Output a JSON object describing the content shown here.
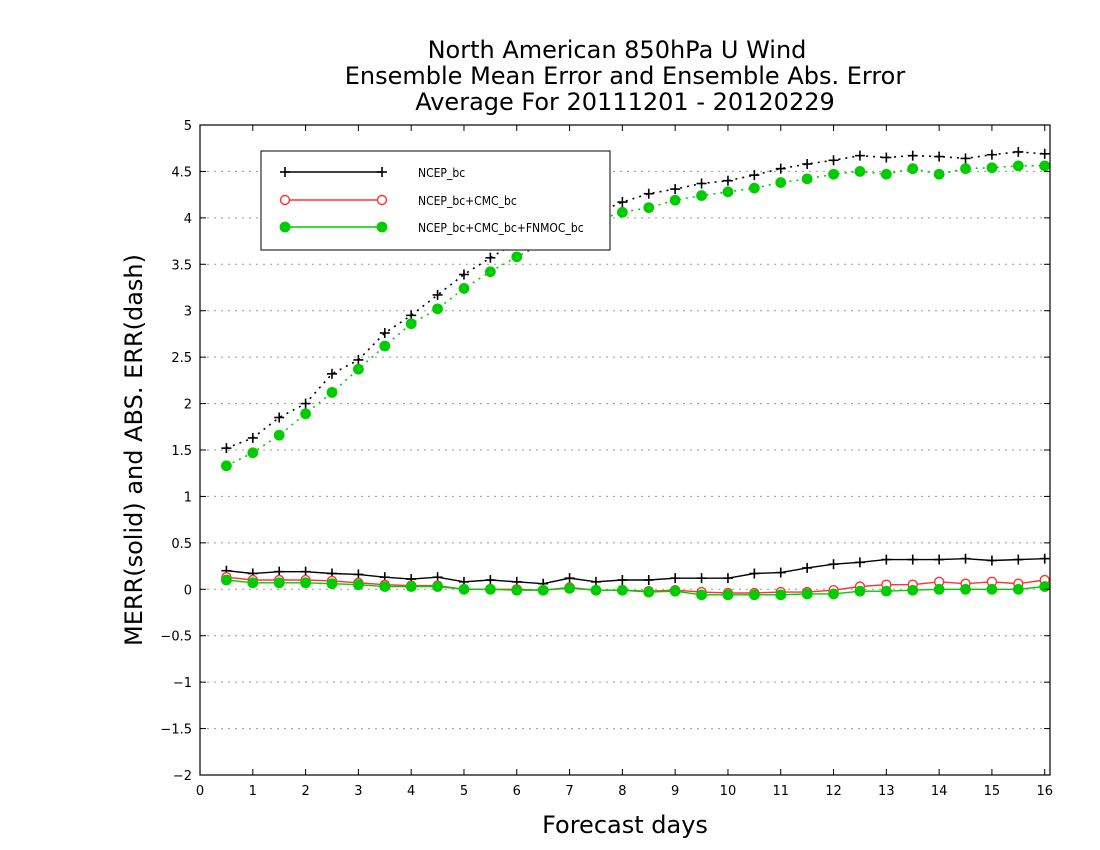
{
  "chart_data": {
    "type": "line",
    "title_lines": [
      "North American 850hPa U Wind",
      "Ensemble Mean Error and Ensemble Abs. Error",
      "Average For 20111201 - 20120229"
    ],
    "xlabel": "Forecast days",
    "ylabel": "MERR(solid) and ABS. ERR(dash)",
    "xlim": [
      0,
      16.1
    ],
    "ylim": [
      -2,
      5
    ],
    "x_ticks": [
      0,
      1,
      2,
      3,
      4,
      5,
      6,
      7,
      8,
      9,
      10,
      11,
      12,
      13,
      14,
      15,
      16
    ],
    "y_ticks": [
      5,
      4.5,
      4,
      3.5,
      3,
      2.5,
      2,
      1.5,
      1,
      0.5,
      0,
      -0.5,
      -1,
      -1.5,
      -2
    ],
    "y_tick_labels": [
      "5",
      "4.5",
      "4",
      "3.5",
      "3",
      "2.5",
      "2",
      "1.5",
      "1",
      "0.5",
      "0",
      "−0.5",
      "−1",
      "−1.5",
      "−2"
    ],
    "grid": "horizontal-dotted",
    "legend_position": "top-left",
    "x": [
      0.5,
      1,
      1.5,
      2,
      2.5,
      3,
      3.5,
      4,
      4.5,
      5,
      5.5,
      6,
      6.5,
      7,
      7.5,
      8,
      8.5,
      9,
      9.5,
      10,
      10.5,
      11,
      11.5,
      12,
      12.5,
      13,
      13.5,
      14,
      14.5,
      15,
      15.5,
      16
    ],
    "series": [
      {
        "name": "NCEP_bc",
        "color": "#000000",
        "marker": "plus",
        "merr": [
          0.2,
          0.17,
          0.19,
          0.19,
          0.17,
          0.16,
          0.13,
          0.11,
          0.13,
          0.08,
          0.1,
          0.08,
          0.06,
          0.12,
          0.08,
          0.1,
          0.1,
          0.12,
          0.12,
          0.12,
          0.17,
          0.18,
          0.23,
          0.27,
          0.29,
          0.32,
          0.32,
          0.32,
          0.33,
          0.31,
          0.32,
          0.33
        ],
        "abs_err": [
          1.52,
          1.63,
          1.85,
          2.0,
          2.32,
          2.47,
          2.76,
          2.95,
          3.17,
          3.39,
          3.57,
          3.74,
          3.86,
          3.97,
          4.05,
          4.17,
          4.26,
          4.31,
          4.37,
          4.4,
          4.46,
          4.53,
          4.58,
          4.62,
          4.67,
          4.65,
          4.67,
          4.66,
          4.64,
          4.68,
          4.71,
          4.69
        ]
      },
      {
        "name": "NCEP_bc+CMC_bc",
        "color": "#ff3333",
        "marker": "open-circle",
        "merr": [
          0.13,
          0.1,
          0.1,
          0.1,
          0.09,
          0.07,
          0.05,
          0.04,
          0.04,
          0.0,
          0.0,
          0.0,
          -0.01,
          0.02,
          -0.01,
          -0.01,
          -0.02,
          -0.01,
          -0.03,
          -0.04,
          -0.04,
          -0.03,
          -0.03,
          -0.01,
          0.03,
          0.05,
          0.05,
          0.08,
          0.06,
          0.08,
          0.06,
          0.1
        ]
      },
      {
        "name": "NCEP_bc+CMC_bc+FNMOC_bc",
        "color": "#00cc00",
        "marker": "filled-circle",
        "merr": [
          0.1,
          0.07,
          0.07,
          0.07,
          0.06,
          0.05,
          0.03,
          0.03,
          0.03,
          0.0,
          0.0,
          -0.01,
          -0.01,
          0.01,
          -0.01,
          -0.01,
          -0.03,
          -0.02,
          -0.06,
          -0.06,
          -0.06,
          -0.06,
          -0.05,
          -0.05,
          -0.02,
          -0.02,
          -0.01,
          0.0,
          0.0,
          0.0,
          0.0,
          0.03
        ],
        "abs_err": [
          1.33,
          1.47,
          1.66,
          1.89,
          2.12,
          2.37,
          2.62,
          2.86,
          3.02,
          3.24,
          3.42,
          3.58,
          3.72,
          3.86,
          3.97,
          4.06,
          4.11,
          4.19,
          4.24,
          4.28,
          4.32,
          4.38,
          4.42,
          4.47,
          4.5,
          4.47,
          4.53,
          4.47,
          4.53,
          4.54,
          4.56,
          4.56
        ]
      }
    ]
  }
}
